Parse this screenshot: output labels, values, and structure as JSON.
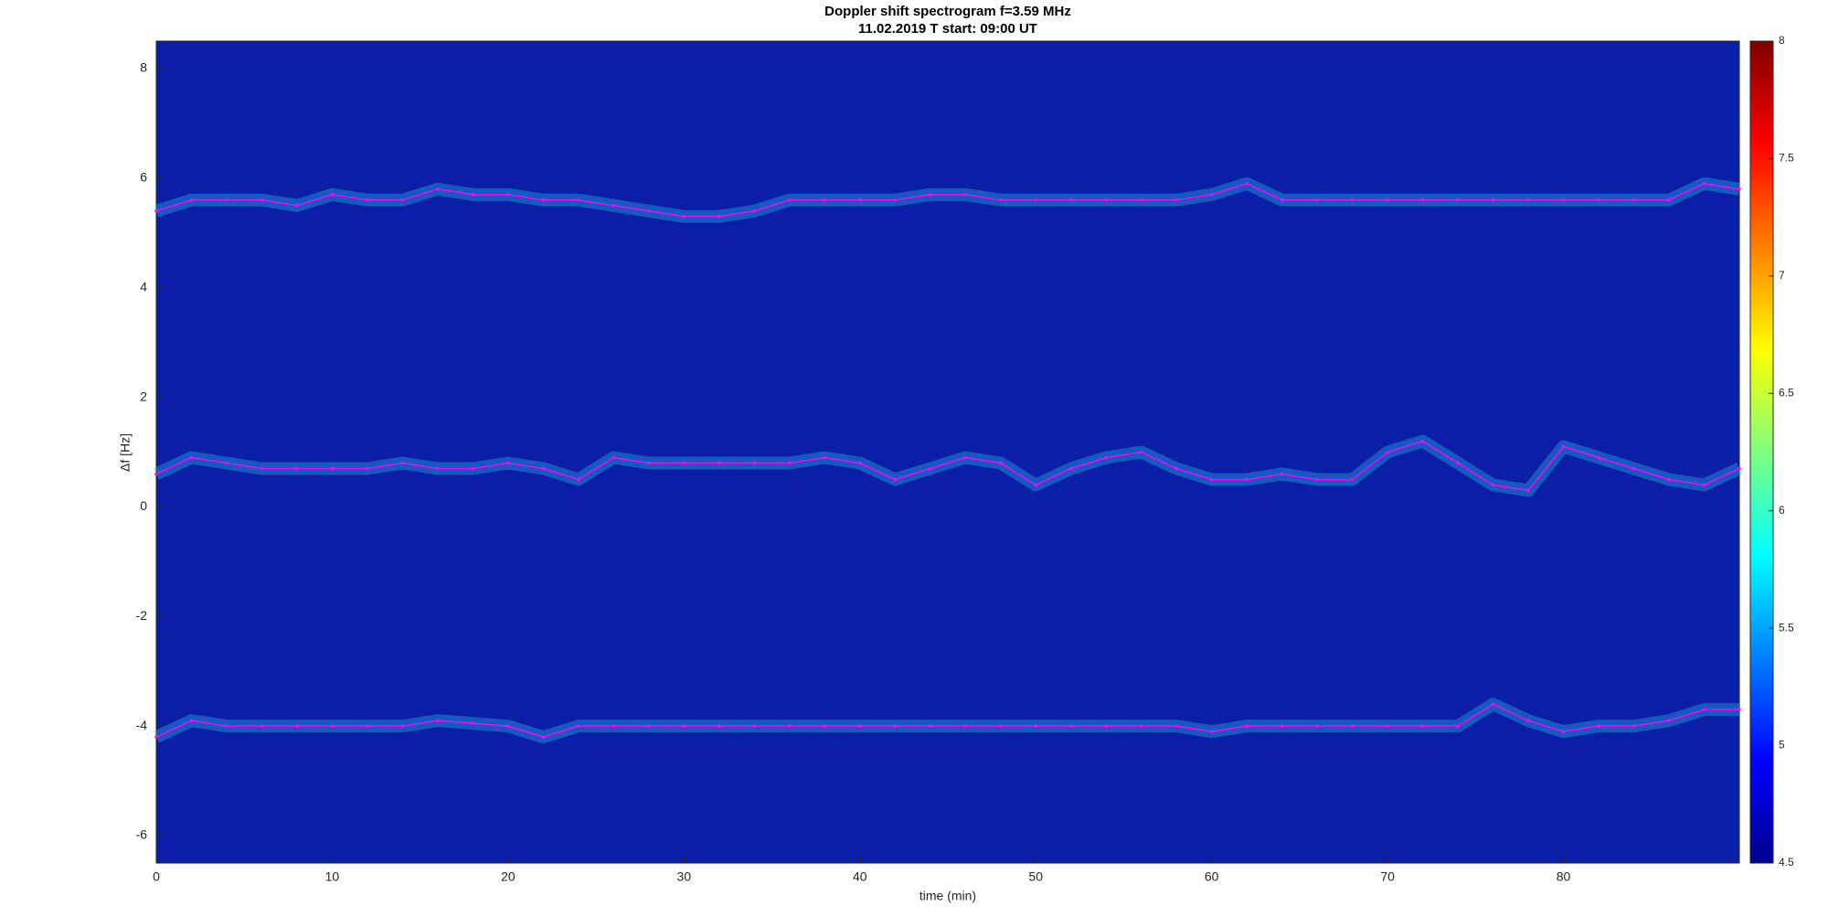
{
  "chart_data": {
    "type": "line",
    "title": "Doppler shift spectrogram f=3.59 MHz",
    "subtitle": "11.02.2019   T start: 09:00 UT",
    "xlabel": "time (min)",
    "ylabel": "Δf [Hz]",
    "xlim": [
      0,
      90
    ],
    "xticks": [
      0,
      10,
      20,
      30,
      40,
      50,
      60,
      70,
      80
    ],
    "ylim": [
      -6.5,
      8.5
    ],
    "yticks": [
      -6,
      -4,
      -2,
      0,
      2,
      4,
      6,
      8
    ],
    "clim": [
      4.5,
      8
    ],
    "cticks": [
      4.5,
      5,
      5.5,
      6,
      6.5,
      7,
      7.5,
      8
    ],
    "colormap": "jet",
    "x": [
      0,
      2,
      4,
      6,
      8,
      10,
      12,
      14,
      16,
      18,
      20,
      22,
      24,
      26,
      28,
      30,
      32,
      34,
      36,
      38,
      40,
      42,
      44,
      46,
      48,
      50,
      52,
      54,
      56,
      58,
      60,
      62,
      64,
      66,
      68,
      70,
      72,
      74,
      76,
      78,
      80,
      82,
      84,
      86,
      88,
      90
    ],
    "series": [
      {
        "color": "#ff00ff",
        "values": [
          5.4,
          5.6,
          5.6,
          5.6,
          5.5,
          5.7,
          5.6,
          5.6,
          5.8,
          5.7,
          5.7,
          5.6,
          5.6,
          5.5,
          5.4,
          5.3,
          5.3,
          5.4,
          5.6,
          5.6,
          5.6,
          5.6,
          5.7,
          5.7,
          5.6,
          5.6,
          5.6,
          5.6,
          5.6,
          5.6,
          5.7,
          5.9,
          5.6,
          5.6,
          5.6,
          5.6,
          5.6,
          5.6,
          5.6,
          5.6,
          5.6,
          5.6,
          5.6,
          5.6,
          5.9,
          5.8
        ]
      },
      {
        "color": "#ff00ff",
        "values": [
          0.6,
          0.9,
          0.8,
          0.7,
          0.7,
          0.7,
          0.7,
          0.8,
          0.7,
          0.7,
          0.8,
          0.7,
          0.5,
          0.9,
          0.8,
          0.8,
          0.8,
          0.8,
          0.8,
          0.9,
          0.8,
          0.5,
          0.7,
          0.9,
          0.8,
          0.4,
          0.7,
          0.9,
          1.0,
          0.7,
          0.5,
          0.5,
          0.6,
          0.5,
          0.5,
          1.0,
          1.2,
          0.8,
          0.4,
          0.3,
          1.1,
          0.9,
          0.7,
          0.5,
          0.4,
          0.7
        ]
      },
      {
        "color": "#ff00ff",
        "values": [
          -4.2,
          -3.9,
          -4.0,
          -4.0,
          -4.0,
          -4.0,
          -4.0,
          -4.0,
          -3.9,
          -3.95,
          -4.0,
          -4.2,
          -4.0,
          -4.0,
          -4.0,
          -4.0,
          -4.0,
          -4.0,
          -4.0,
          -4.0,
          -4.0,
          -4.0,
          -4.0,
          -4.0,
          -4.0,
          -4.0,
          -4.0,
          -4.0,
          -4.0,
          -4.0,
          -4.1,
          -4.0,
          -4.0,
          -4.0,
          -4.0,
          -4.0,
          -4.0,
          -4.0,
          -3.6,
          -3.9,
          -4.1,
          -4.0,
          -4.0,
          -3.9,
          -3.7,
          -3.7
        ]
      }
    ]
  }
}
